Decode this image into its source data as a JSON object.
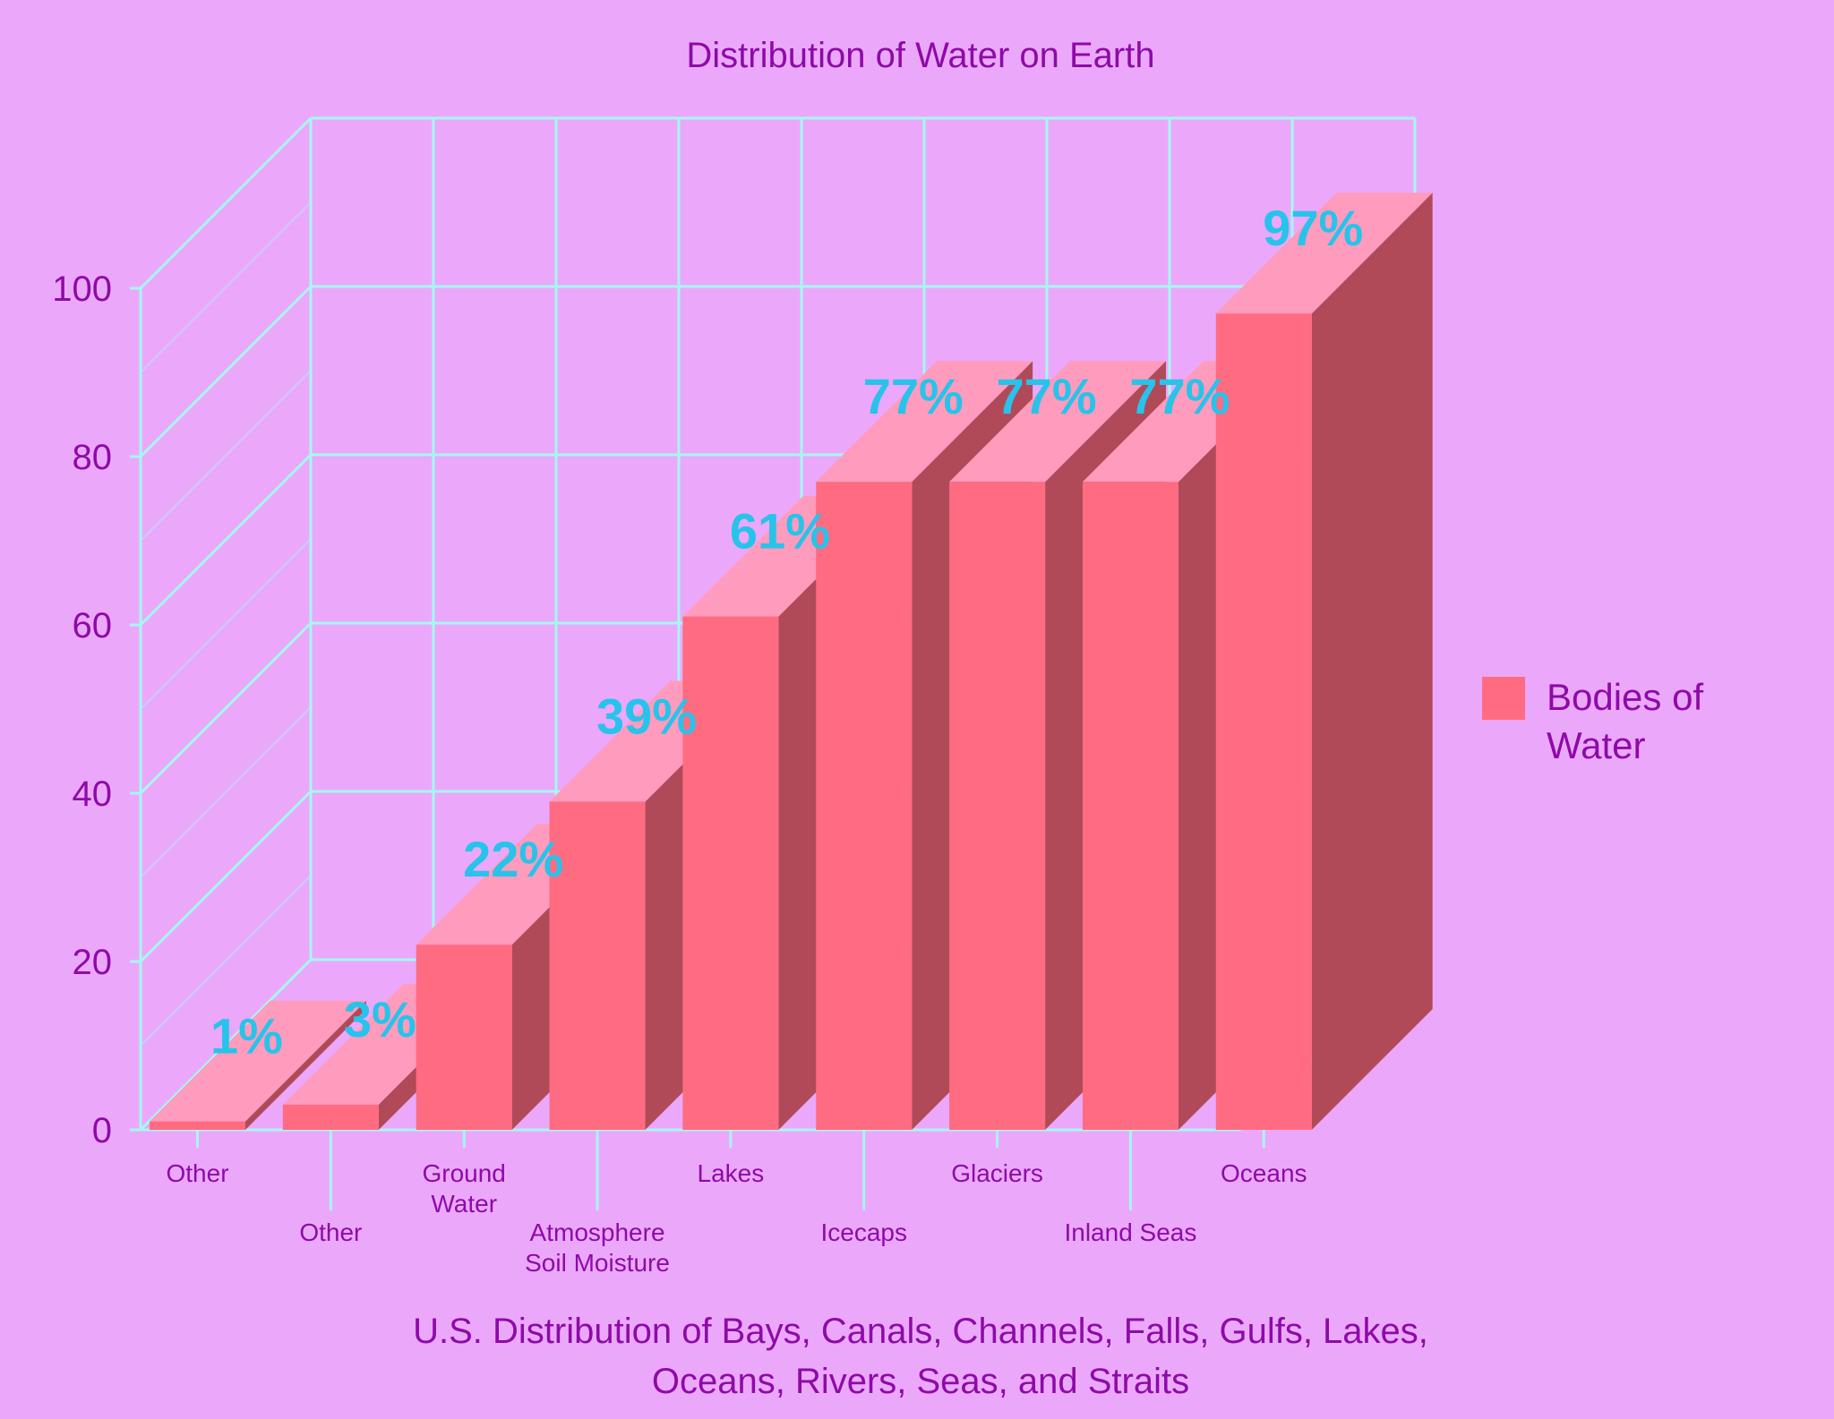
{
  "colors": {
    "background": "#eba8fb",
    "text": "#8e0aa8",
    "grid": "#a6f7f1",
    "bar_front": "#ff6b81",
    "bar_top": "#ff9bbc",
    "bar_side": "#b04a59",
    "data_label": "#27c3eb"
  },
  "chart_data": {
    "type": "bar",
    "title": "Distribution of Water on Earth",
    "xlabel": "U.S. Distribution of Bays, Canals, Channels, Falls, Gulfs, Lakes, Oceans, Rivers, Seas, and Straits",
    "ylabel": "",
    "ylim": [
      0,
      100
    ],
    "yticks": [
      0,
      20,
      40,
      60,
      80,
      100
    ],
    "grid": true,
    "legend_position": "right",
    "categories": [
      "Other",
      "Other",
      "Ground Water",
      "Atmosphere Soil Moisture",
      "Lakes",
      "Icecaps",
      "Glaciers",
      "Inland Seas",
      "Oceans"
    ],
    "category_label_lines": [
      [
        "Other"
      ],
      [
        "Other"
      ],
      [
        "Ground",
        "Water"
      ],
      [
        "Atmosphere",
        "Soil Moisture"
      ],
      [
        "Lakes"
      ],
      [
        "Icecaps"
      ],
      [
        "Glaciers"
      ],
      [
        "Inland Seas"
      ],
      [
        "Oceans"
      ]
    ],
    "series": [
      {
        "name": "Bodies of Water",
        "values": [
          1,
          3,
          22,
          39,
          61,
          77,
          77,
          77,
          97
        ],
        "data_labels": [
          "1%",
          "3%",
          "22%",
          "39%",
          "61%",
          "77%",
          "77%",
          "77%",
          "97%"
        ]
      }
    ],
    "legend": {
      "label_lines": [
        "Bodies of",
        "Water"
      ]
    }
  }
}
